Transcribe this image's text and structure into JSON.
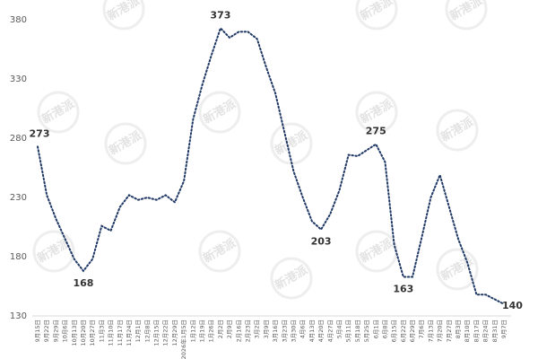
{
  "chart_data": {
    "type": "line",
    "watermark": "新港派",
    "categories": [
      "9月15日",
      "9月22日",
      "9月29日",
      "10月6日",
      "10月13日",
      "10月20日",
      "10月27日",
      "11月3日",
      "11月10日",
      "11月17日",
      "11月24日",
      "12月1日",
      "12月8日",
      "12月15日",
      "12月22日",
      "12月29日",
      "2026年1月5日",
      "1月12日",
      "1月19日",
      "1月26日",
      "2月2日",
      "2月9日",
      "2月16日",
      "2月23日",
      "3月2日",
      "3月9日",
      "3月16日",
      "3月23日",
      "3月30日",
      "4月6日",
      "4月13日",
      "4月20日",
      "4月27日",
      "5月4日",
      "5月11日",
      "5月18日",
      "5月25日",
      "6月1日",
      "6月8日",
      "6月15日",
      "6月22日",
      "6月29日",
      "7月6日",
      "7月13日",
      "7月20日",
      "7月27日",
      "8月3日",
      "8月10日",
      "8月17日",
      "8月24日",
      "8月31日",
      "9月7日"
    ],
    "values": [
      273,
      232,
      212,
      195,
      178,
      168,
      178,
      206,
      202,
      222,
      232,
      228,
      230,
      228,
      232,
      226,
      244,
      296,
      325,
      350,
      373,
      365,
      370,
      370,
      364,
      340,
      318,
      285,
      252,
      230,
      210,
      203,
      216,
      236,
      266,
      265,
      270,
      275,
      260,
      190,
      163,
      163,
      196,
      230,
      249,
      222,
      195,
      175,
      148,
      148,
      144,
      140
    ],
    "value_labels": [
      "273",
      null,
      null,
      null,
      null,
      "168",
      null,
      null,
      null,
      null,
      null,
      null,
      null,
      null,
      null,
      null,
      null,
      null,
      null,
      null,
      "373",
      null,
      null,
      null,
      null,
      null,
      null,
      null,
      null,
      null,
      null,
      "203",
      null,
      null,
      null,
      null,
      null,
      "275",
      null,
      null,
      "163",
      null,
      null,
      null,
      null,
      null,
      null,
      null,
      null,
      null,
      null,
      "140"
    ],
    "color": "#1f3864",
    "ylim": [
      130,
      390
    ],
    "yticks": [
      130,
      180,
      230,
      280,
      330,
      380
    ]
  }
}
